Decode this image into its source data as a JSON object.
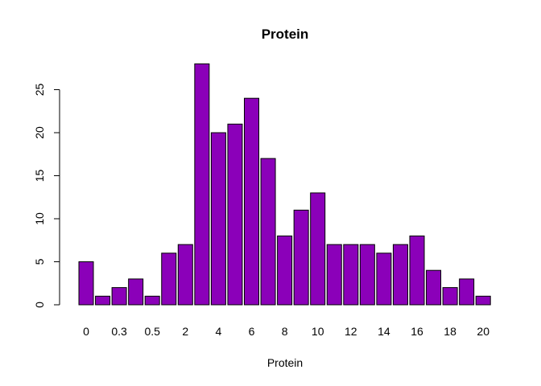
{
  "chart_data": {
    "type": "bar",
    "title": "Protein",
    "xlabel": "Protein",
    "ylabel": "",
    "ylim": [
      0,
      28
    ],
    "yticks": [
      0,
      5,
      10,
      15,
      20,
      25
    ],
    "categories": [
      "0",
      "",
      "0.3",
      "",
      "0.5",
      "",
      "2",
      "",
      "4",
      "",
      "6",
      "",
      "8",
      "",
      "10",
      "",
      "12",
      "",
      "14",
      "",
      "16",
      "",
      "18",
      "",
      "20"
    ],
    "values": [
      5,
      1,
      2,
      3,
      1,
      6,
      7,
      28,
      20,
      21,
      24,
      17,
      8,
      11,
      13,
      7,
      7,
      7,
      6,
      7,
      8,
      4,
      2,
      3,
      1
    ],
    "bar_color": "#8B00B9",
    "bar_border_color": "#000000",
    "grid": false,
    "legend": "none"
  }
}
